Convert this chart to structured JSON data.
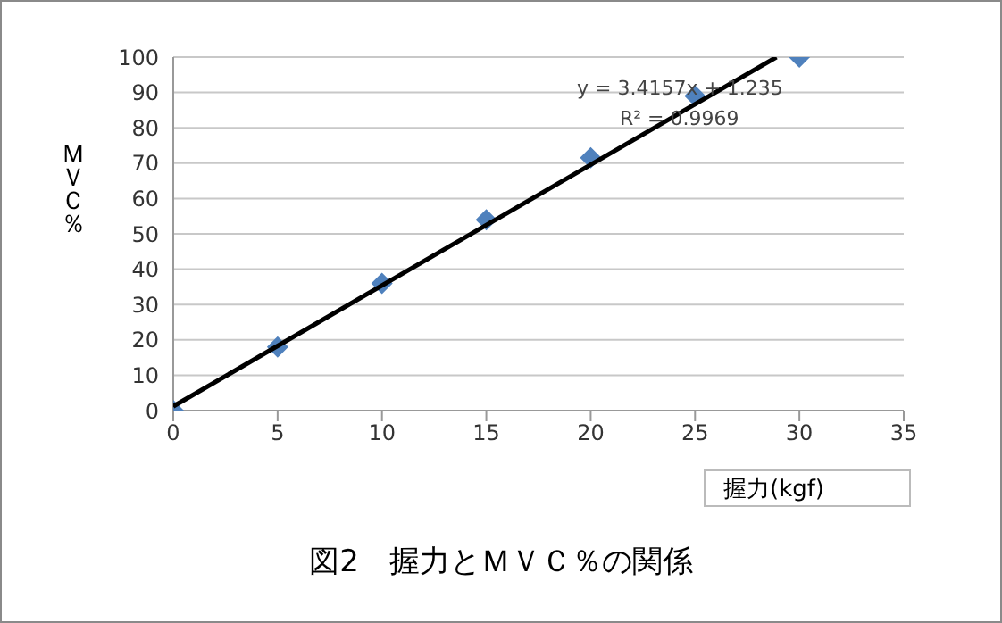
{
  "chart_data": {
    "type": "scatter",
    "title": "図2　握力とＭＶＣ％の関係",
    "xlabel": "握力(kgf)",
    "ylabel": "ＭＶＣ％",
    "xlim": [
      0,
      35
    ],
    "xticks": [
      0,
      5,
      10,
      15,
      20,
      25,
      30,
      35
    ],
    "ylim": [
      0,
      100
    ],
    "yticks": [
      0,
      10,
      20,
      30,
      40,
      50,
      60,
      70,
      80,
      90,
      100
    ],
    "grid": "y",
    "marker": "diamond",
    "series": [
      {
        "color": "#4f81bd",
        "x": [
          0,
          5,
          10,
          15,
          20,
          25,
          30
        ],
        "values": [
          0,
          18,
          36,
          54,
          71.5,
          89,
          100
        ]
      },
      {
        "type": "line",
        "color": "#000000",
        "marker": "none",
        "x": [
          0,
          28.9
        ],
        "values": [
          1.2,
          100
        ]
      }
    ],
    "annotations": [
      "y = 3.4157x + 1.235",
      "R² = 0.9969"
    ]
  }
}
